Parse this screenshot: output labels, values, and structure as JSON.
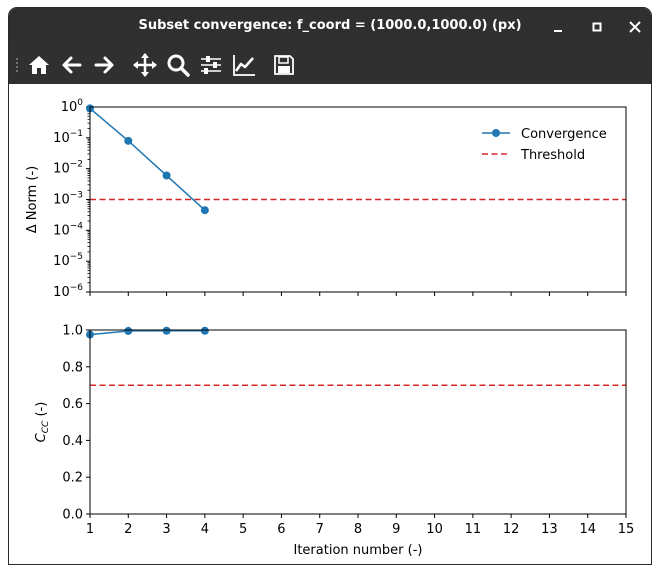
{
  "window": {
    "title": "Subset convergence: f_coord = (1000.0,1000.0) (px)",
    "controls": [
      "minimize-icon",
      "maximize-icon",
      "close-icon"
    ]
  },
  "toolbar": {
    "buttons": [
      "home-icon",
      "back-arrow-icon",
      "forward-arrow-icon",
      "pan-icon",
      "zoom-icon",
      "configure-subplots-icon",
      "edit-axis-icon",
      "save-icon"
    ]
  },
  "colors": {
    "titlebar": "#2f2f2f",
    "toolbar": "#303030",
    "series": "#1f77b4",
    "threshold": "#d62728"
  },
  "chart_data": [
    {
      "type": "line",
      "yscale": "log",
      "ylabel": "Δ Norm (-)",
      "xlim": [
        1,
        15
      ],
      "ylim": [
        1e-06,
        1
      ],
      "yticks": [
        {
          "value": 1,
          "base": "10",
          "exp": "0"
        },
        {
          "value": 0.1,
          "base": "10",
          "exp": "−1"
        },
        {
          "value": 0.01,
          "base": "10",
          "exp": "−2"
        },
        {
          "value": 0.001,
          "base": "10",
          "exp": "−3"
        },
        {
          "value": 0.0001,
          "base": "10",
          "exp": "−4"
        },
        {
          "value": 1e-05,
          "base": "10",
          "exp": "−5"
        },
        {
          "value": 1e-06,
          "base": "10",
          "exp": "−6"
        }
      ],
      "series": [
        {
          "name": "Convergence",
          "x": [
            1,
            2,
            3,
            4
          ],
          "y": [
            0.9,
            0.08,
            0.006,
            0.00045
          ]
        }
      ],
      "hlines": [
        {
          "name": "Threshold",
          "y": 0.001,
          "style": "dashed"
        }
      ],
      "legend": {
        "position": "top-right",
        "entries": [
          "Convergence",
          "Threshold"
        ]
      }
    },
    {
      "type": "line",
      "yscale": "linear",
      "ylabel": {
        "main": "C",
        "sub": "CC",
        "rest": " (-)"
      },
      "xlabel": "Iteration number (-)",
      "xlim": [
        1,
        15
      ],
      "ylim": [
        0,
        1
      ],
      "xticks": [
        "1",
        "2",
        "3",
        "4",
        "5",
        "6",
        "7",
        "8",
        "9",
        "10",
        "11",
        "12",
        "13",
        "14",
        "15"
      ],
      "yticks": [
        "0.0",
        "0.2",
        "0.4",
        "0.6",
        "0.8",
        "1.0"
      ],
      "series": [
        {
          "x": [
            1,
            2,
            3,
            4
          ],
          "y": [
            0.975,
            0.995,
            0.996,
            0.996
          ]
        }
      ],
      "hlines": [
        {
          "y": 0.7,
          "style": "dashed"
        }
      ]
    }
  ]
}
